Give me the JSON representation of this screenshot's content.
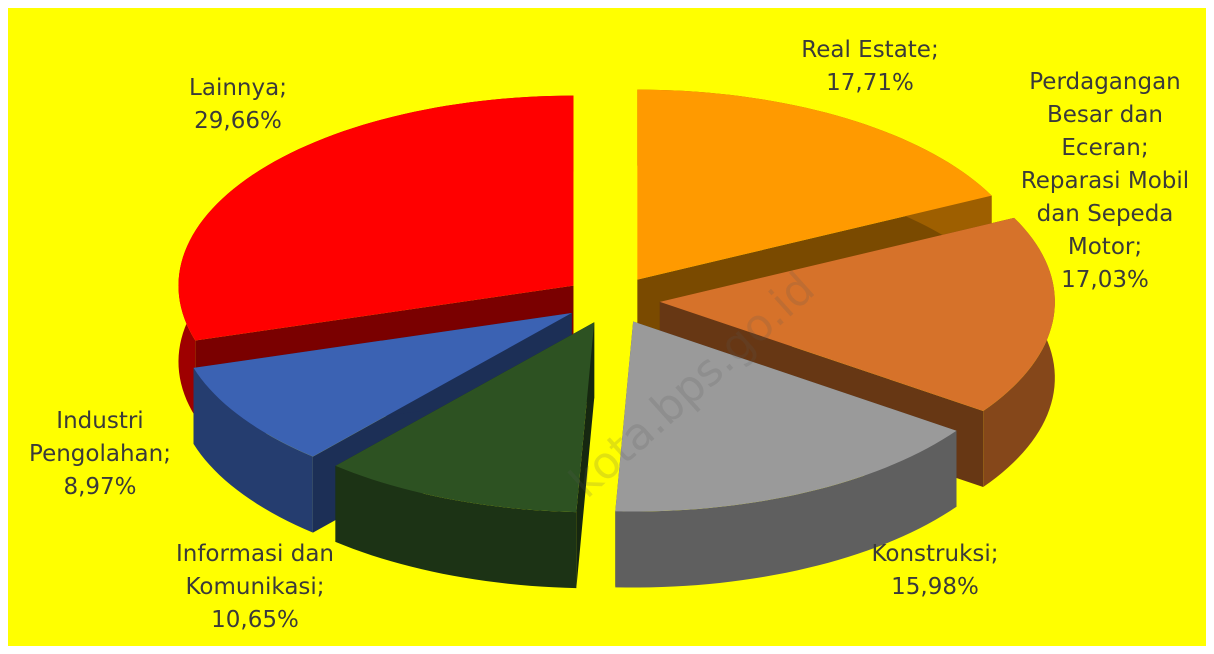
{
  "chart_data": {
    "type": "pie",
    "categories": [
      "Real Estate;",
      "Perdagangan Besar dan Eceran; Reparasi Mobil dan Sepeda Motor;",
      "Konstruksi;",
      "Informasi dan Komunikasi;",
      "Industri Pengolahan;",
      "Lainnya;"
    ],
    "values": [
      17.71,
      17.03,
      15.98,
      10.65,
      8.97,
      29.66
    ],
    "value_labels": [
      "17,71%",
      "17,03%",
      "15,98%",
      "10,65%",
      "8,97%",
      "29,66%"
    ],
    "colors": [
      "#ff9a00",
      "#d6722a",
      "#9a9a9a",
      "#2d5222",
      "#3b62b3",
      "#ff0000"
    ],
    "watermark": "kota.bps.go.id"
  }
}
